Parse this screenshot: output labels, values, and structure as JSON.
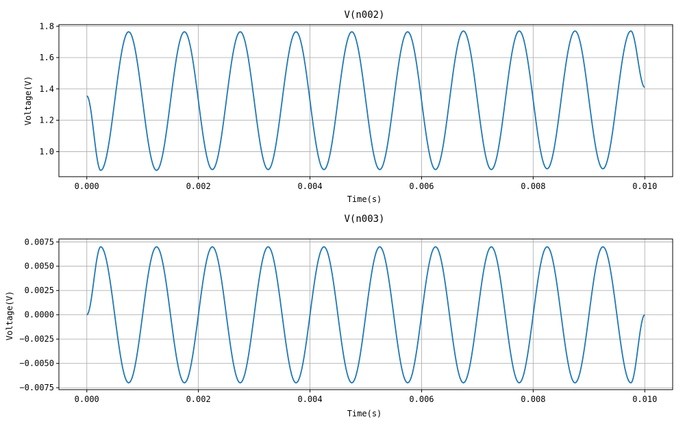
{
  "chart_data": [
    {
      "type": "line",
      "title": "V(n002)",
      "xlabel": "Time(s)",
      "ylabel": "Voltage(V)",
      "xlim": [
        -0.0005,
        0.0105
      ],
      "ylim": [
        0.84,
        1.81
      ],
      "xticks": [
        0.0,
        0.002,
        0.004,
        0.006,
        0.008,
        0.01
      ],
      "xtick_labels": [
        "0.000",
        "0.002",
        "0.004",
        "0.006",
        "0.008",
        "0.010"
      ],
      "yticks": [
        1.0,
        1.2,
        1.4,
        1.6,
        1.8
      ],
      "ytick_labels": [
        "1.0",
        "1.2",
        "1.4",
        "1.6",
        "1.8"
      ],
      "grid": true,
      "series": [
        {
          "color": "#1f77b4",
          "x": [
            0.0,
            0.00025,
            0.00075,
            0.00125,
            0.00175,
            0.00225,
            0.00275,
            0.00325,
            0.00375,
            0.00425,
            0.00475,
            0.00525,
            0.00575,
            0.00625,
            0.00675,
            0.00725,
            0.00775,
            0.00825,
            0.00875,
            0.00925,
            0.00975,
            0.01
          ],
          "y": [
            1.355,
            0.88,
            1.765,
            0.88,
            1.765,
            0.885,
            1.765,
            0.885,
            1.765,
            0.885,
            1.765,
            0.885,
            1.765,
            0.885,
            1.77,
            0.885,
            1.77,
            0.89,
            1.77,
            0.89,
            1.77,
            1.41
          ]
        }
      ]
    },
    {
      "type": "line",
      "title": "V(n003)",
      "xlabel": "Time(s)",
      "ylabel": "Voltage(V)",
      "xlim": [
        -0.0005,
        0.0105
      ],
      "ylim": [
        -0.0077,
        0.0078
      ],
      "xticks": [
        0.0,
        0.002,
        0.004,
        0.006,
        0.008,
        0.01
      ],
      "xtick_labels": [
        "0.000",
        "0.002",
        "0.004",
        "0.006",
        "0.008",
        "0.010"
      ],
      "yticks": [
        -0.0075,
        -0.005,
        -0.0025,
        0.0,
        0.0025,
        0.005,
        0.0075
      ],
      "ytick_labels": [
        "−0.0075",
        "−0.0050",
        "−0.0025",
        "0.0000",
        "0.0025",
        "0.0050",
        "0.0075"
      ],
      "grid": true,
      "series": [
        {
          "color": "#1f77b4",
          "x": [
            0.0,
            0.00025,
            0.00075,
            0.00125,
            0.00175,
            0.00225,
            0.00275,
            0.00325,
            0.00375,
            0.00425,
            0.00475,
            0.00525,
            0.00575,
            0.00625,
            0.00675,
            0.00725,
            0.00775,
            0.00825,
            0.00875,
            0.00925,
            0.00975,
            0.01
          ],
          "y": [
            0.0,
            0.007,
            -0.007,
            0.007,
            -0.007,
            0.007,
            -0.007,
            0.007,
            -0.007,
            0.007,
            -0.007,
            0.007,
            -0.007,
            0.007,
            -0.007,
            0.007,
            -0.007,
            0.007,
            -0.007,
            0.007,
            -0.007,
            0.0
          ]
        }
      ]
    }
  ]
}
